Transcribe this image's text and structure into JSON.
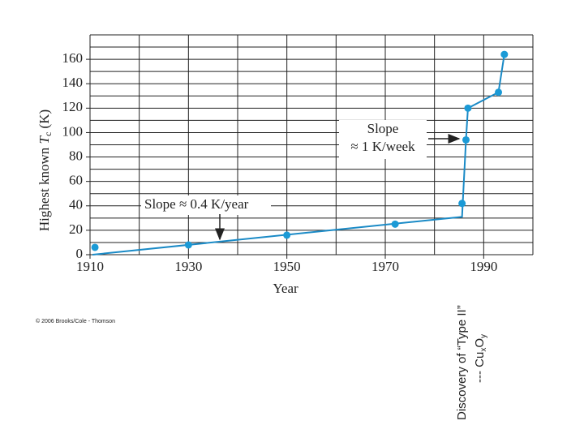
{
  "chart_data": {
    "type": "scatter",
    "x_label": "Year",
    "y_label": {
      "prefix": "Highest known ",
      "symbol": "T",
      "subscript": "c",
      "suffix": " (K)"
    },
    "xlim": [
      1910,
      2000
    ],
    "ylim": [
      0,
      180
    ],
    "xticks": [
      1910,
      1930,
      1950,
      1970,
      1990
    ],
    "yticks": [
      0,
      20,
      40,
      60,
      80,
      100,
      120,
      140,
      160
    ],
    "xgrid": [
      1910,
      1920,
      1930,
      1940,
      1950,
      1960,
      1970,
      1980,
      1990,
      2000
    ],
    "ygrid": [
      0,
      10,
      20,
      30,
      40,
      50,
      60,
      70,
      80,
      90,
      100,
      110,
      120,
      130,
      140,
      150,
      160,
      170,
      180
    ],
    "grid": true,
    "points": {
      "color": "#1b9ad6",
      "x": [
        1911,
        1930,
        1950,
        1972,
        1985.6,
        1986.4,
        1986.8,
        1993,
        1994.2
      ],
      "values": [
        6,
        8,
        16,
        25,
        42,
        94,
        120,
        133,
        164
      ]
    },
    "trend": {
      "color": "#1a8ac6",
      "x": [
        1910.5,
        1985.6,
        1986.4,
        1986.8,
        1993,
        1994.2
      ],
      "values": [
        0,
        31,
        94,
        120,
        133,
        164
      ]
    },
    "annotations": {
      "slope_year": "Slope ≈ 0.4 K/year",
      "slope_week_1": "Slope",
      "slope_week_2": "≈ 1 K/week"
    },
    "copyright": "© 2006 Brooks/Cole - Thomson",
    "side_note": {
      "line1": "Discovery of “Type II”",
      "line2_prefix": "--- Cu",
      "sub1": "x",
      "mid": "O",
      "sub2": "y"
    }
  }
}
